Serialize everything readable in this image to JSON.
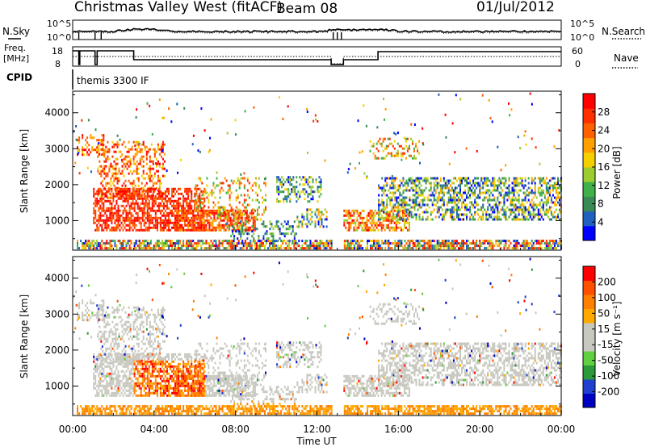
{
  "header": {
    "station": "Christmas Valley West (fitACF)",
    "beam": "Beam 08",
    "date": "01/Jul/2012"
  },
  "colors": {
    "power_scale": [
      "#0000ff",
      "#2060c0",
      "#3a8a55",
      "#3fb04a",
      "#9ccc30",
      "#f5d000",
      "#ffa000",
      "#ff6000",
      "#ff3000",
      "#ff0000"
    ],
    "velocity_scale": [
      "#0000c0",
      "#2040d0",
      "#2a9a3a",
      "#60d040",
      "#c8c8c0",
      "#c8c8c0",
      "#ffa800",
      "#ff8000",
      "#ff5000",
      "#ff0000"
    ]
  },
  "chart_data": {
    "type": "heatmap",
    "x_range_hours": [
      0,
      24
    ],
    "x_ticks": [
      "00:00",
      "04:00",
      "08:00",
      "12:00",
      "16:00",
      "20:00",
      "00:00"
    ],
    "x_label": "Time UT",
    "noise_panel": {
      "left_label": "N.Sky",
      "right_label": "N.Search",
      "left_ticks": [
        "10^5",
        "10^0"
      ],
      "right_ticks": [
        "10^5",
        "10^0"
      ]
    },
    "freq_panel": {
      "left_label_line1": "Freq.",
      "left_label_line2": "[MHz]",
      "right_label": "Nave",
      "left_ticks": [
        "18",
        "8"
      ],
      "right_ticks": [
        "60",
        "0"
      ]
    },
    "cpid": {
      "label": "CPID",
      "value": "themis 3300 IF"
    },
    "power_panel": {
      "y_label": "Slant Range [km]",
      "y_range_km": [
        180,
        4600
      ],
      "y_ticks": [
        1000,
        2000,
        3000,
        4000
      ],
      "colorbar_label": "Power [dB]",
      "colorbar_ticks": [
        "28",
        "24",
        "20",
        "16",
        "12",
        "8",
        "4"
      ]
    },
    "velocity_panel": {
      "y_label": "Slant Range [km]",
      "y_range_km": [
        180,
        4600
      ],
      "y_ticks": [
        1000,
        2000,
        3000,
        4000
      ],
      "colorbar_label": "Velocity [m s⁻¹]",
      "colorbar_ticks": [
        "200",
        "100",
        "50",
        "15",
        "-15",
        "-50",
        "-100",
        "-200"
      ]
    }
  }
}
